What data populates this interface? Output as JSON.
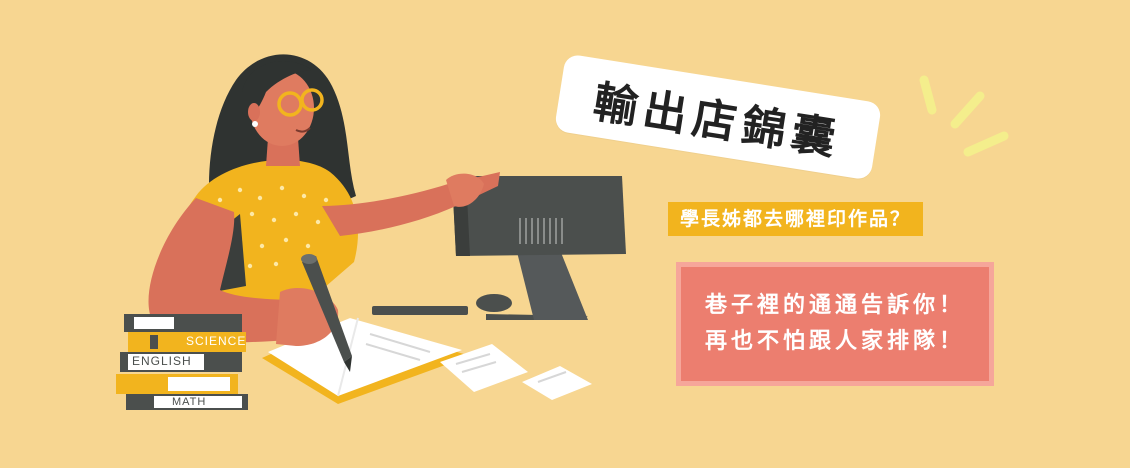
{
  "title": "輸出店錦囊",
  "subtitle": "學長姊都去哪裡印作品？",
  "message": {
    "line1": "巷子裡的通通告訴你！",
    "line2": "再也不怕跟人家排隊！"
  },
  "books": {
    "science": "SCIENCE",
    "english": "ENGLISH",
    "math": "MATH"
  },
  "colors": {
    "background": "#f7d691",
    "accent_yellow": "#f2b41e",
    "message_box": "#ec7e6f",
    "message_border": "#f6a69a",
    "dark_gray": "#4b4f4d"
  }
}
